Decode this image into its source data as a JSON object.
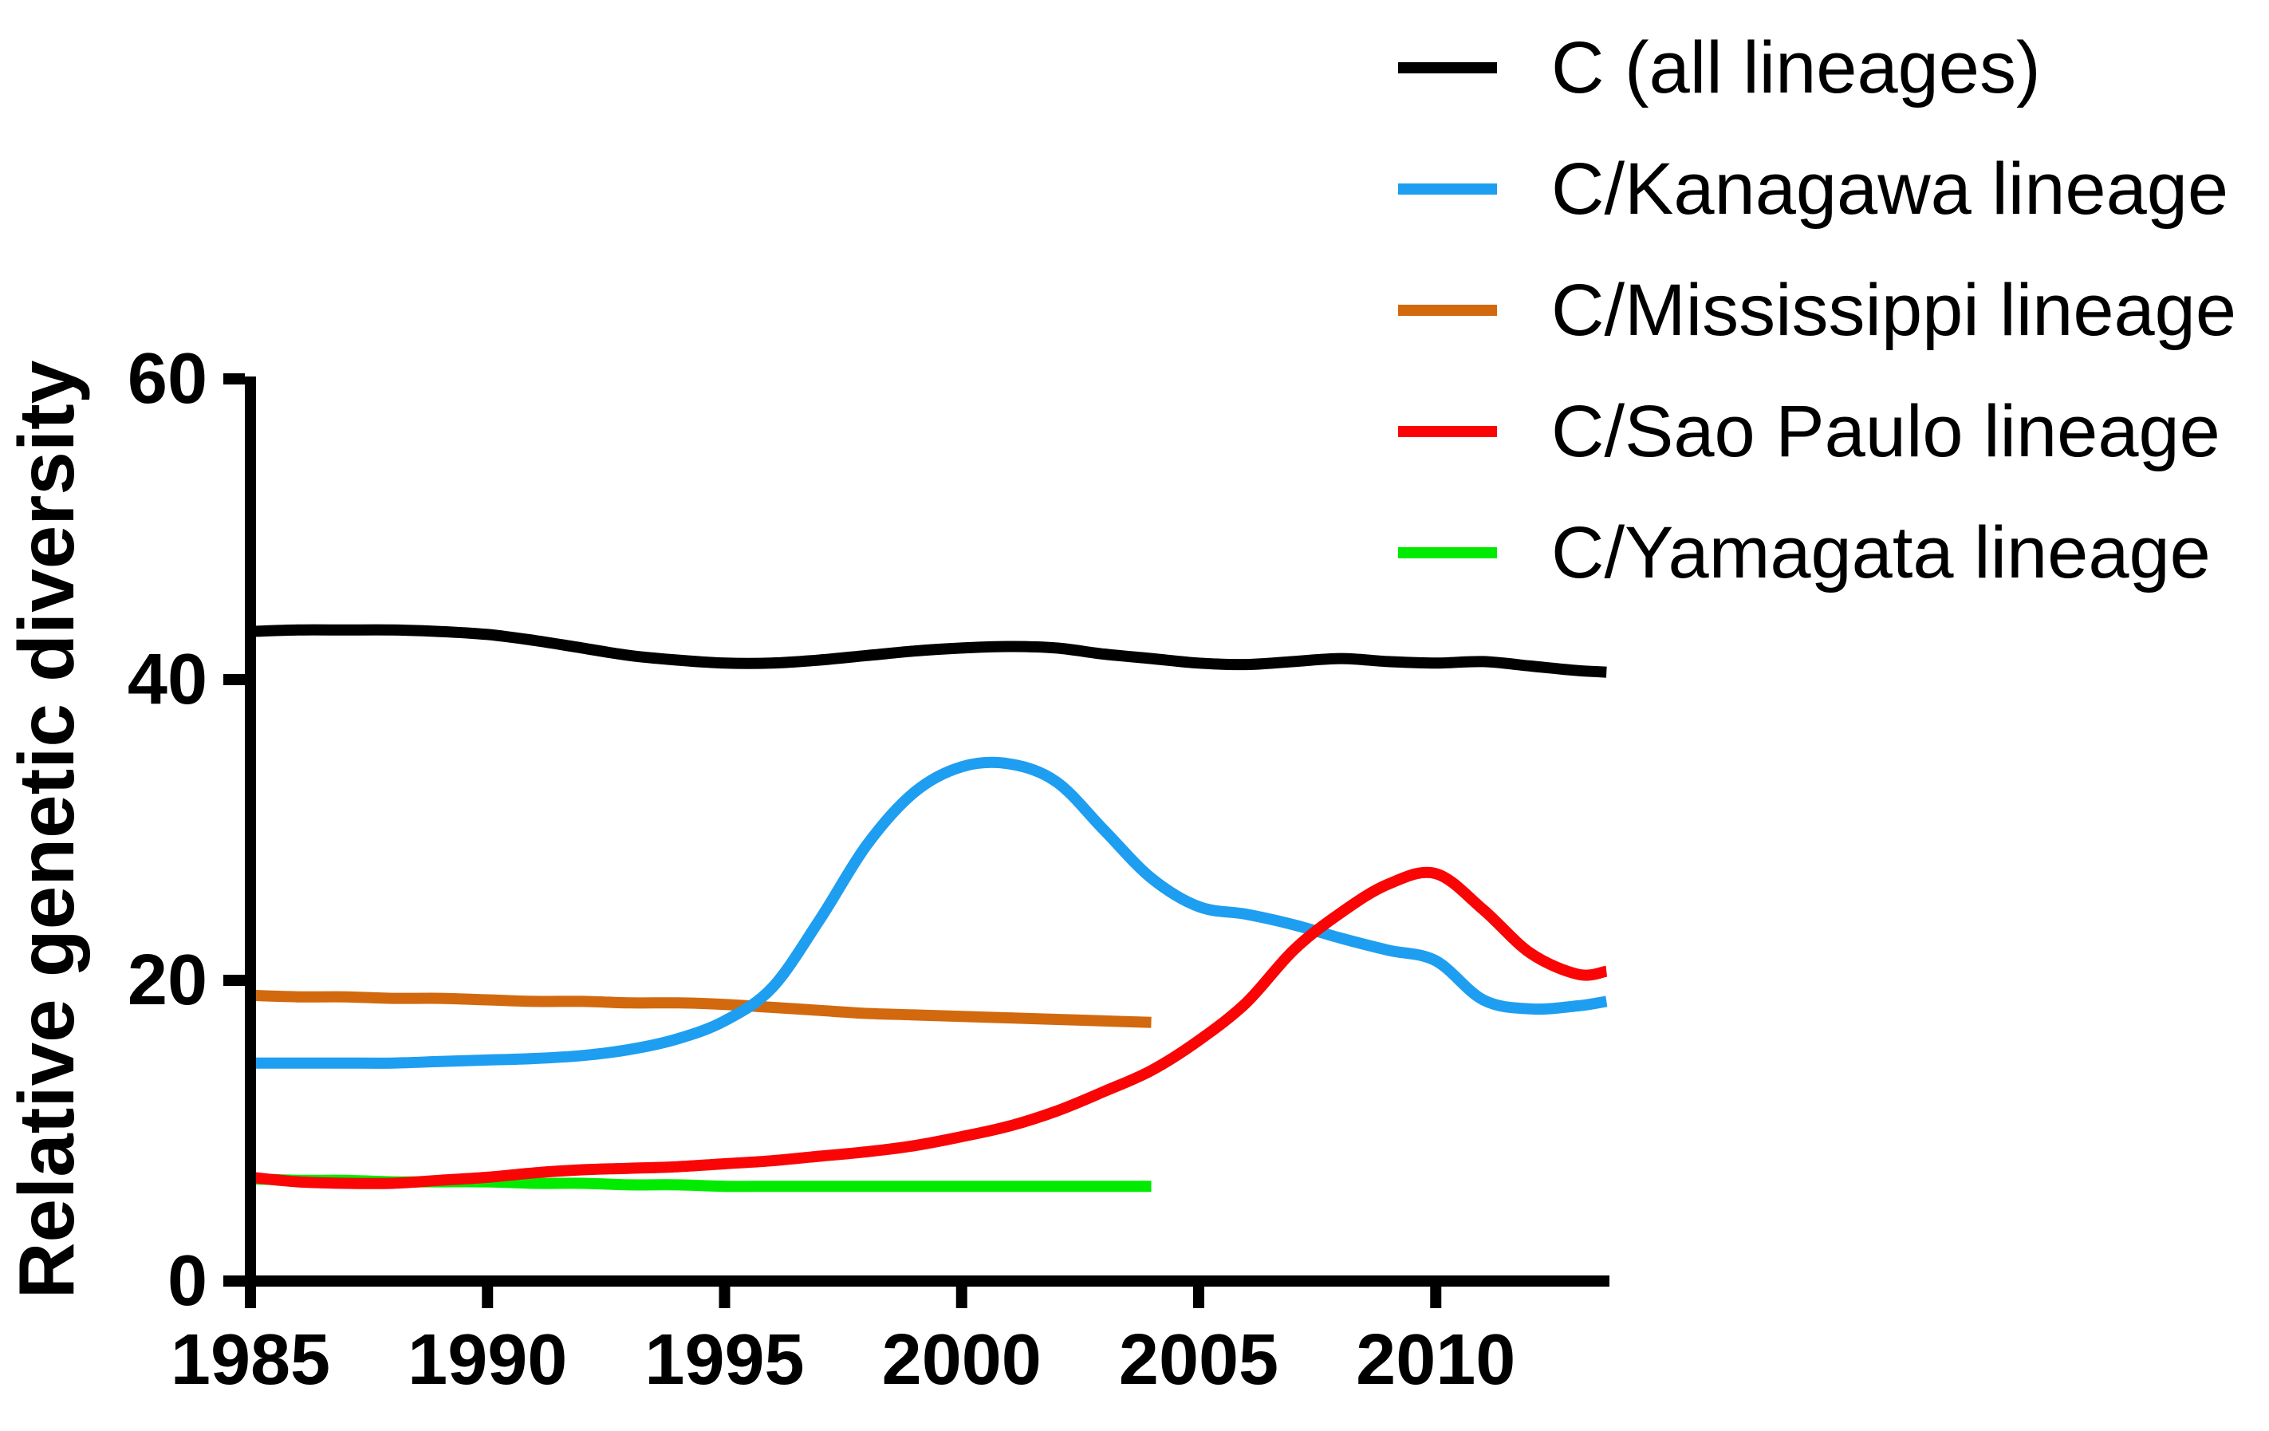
{
  "figure": {
    "background": "#ffffff",
    "axis_color": "#000000"
  },
  "chart_data": {
    "type": "line",
    "title": "",
    "xlabel": "",
    "ylabel": "Relative genetic diversity",
    "xlim": [
      1985,
      2013.95
    ],
    "ylim": [
      0,
      60
    ],
    "xticks": [
      1985,
      1990,
      1995,
      2000,
      2005,
      2010
    ],
    "yticks": [
      0,
      20,
      40,
      60
    ],
    "grid": false,
    "legend_position": "top-right",
    "series": [
      {
        "name": "C (all lineages)",
        "color": "#000000",
        "z": 3,
        "x": [
          1985,
          1986,
          1987,
          1988,
          1989,
          1990,
          1991,
          1992,
          1993,
          1994,
          1995,
          1996,
          1997,
          1998,
          1999,
          2000,
          2001,
          2002,
          2003,
          2004,
          2005,
          2006,
          2007,
          2008,
          2009,
          2010,
          2011,
          2012,
          2013,
          2013.6
        ],
        "values": [
          43.2,
          43.3,
          43.3,
          43.3,
          43.2,
          43.0,
          42.6,
          42.1,
          41.6,
          41.3,
          41.1,
          41.1,
          41.3,
          41.6,
          41.9,
          42.1,
          42.2,
          42.1,
          41.7,
          41.4,
          41.1,
          41.0,
          41.2,
          41.4,
          41.2,
          41.1,
          41.2,
          40.9,
          40.6,
          40.5
        ]
      },
      {
        "name": "C/Kanagawa lineage",
        "color": "#1E9EF0",
        "z": 4,
        "x": [
          1985,
          1986,
          1987,
          1988,
          1989,
          1990,
          1991,
          1992,
          1993,
          1994,
          1995,
          1996,
          1997,
          1998,
          1999,
          2000,
          2001,
          2002,
          2003,
          2004,
          2005,
          2006,
          2007,
          2008,
          2009,
          2010,
          2011,
          2012,
          2013,
          2013.6
        ],
        "values": [
          14.5,
          14.5,
          14.5,
          14.5,
          14.6,
          14.7,
          14.8,
          15.0,
          15.4,
          16.1,
          17.3,
          19.5,
          24.0,
          29.0,
          32.5,
          34.2,
          34.4,
          33.2,
          30.0,
          26.8,
          24.9,
          24.4,
          23.7,
          22.8,
          22.0,
          21.3,
          18.7,
          18.1,
          18.3,
          18.6
        ]
      },
      {
        "name": "C/Mississippi lineage",
        "color": "#D2690E",
        "z": 2,
        "x": [
          1985,
          1986,
          1987,
          1988,
          1989,
          1990,
          1991,
          1992,
          1993,
          1994,
          1995,
          1996,
          1997,
          1998,
          1999,
          2000,
          2001,
          2002,
          2003,
          2004
        ],
        "values": [
          19.0,
          18.9,
          18.9,
          18.8,
          18.8,
          18.7,
          18.6,
          18.6,
          18.5,
          18.5,
          18.4,
          18.2,
          18.0,
          17.8,
          17.7,
          17.6,
          17.5,
          17.4,
          17.3,
          17.2
        ]
      },
      {
        "name": "C/Sao Paulo lineage",
        "color": "#FA0505",
        "z": 5,
        "x": [
          1985,
          1986,
          1987,
          1988,
          1989,
          1990,
          1991,
          1992,
          1993,
          1994,
          1995,
          1996,
          1997,
          1998,
          1999,
          2000,
          2001,
          2002,
          2003,
          2004,
          2005,
          2006,
          2007,
          2008,
          2009,
          2010,
          2011,
          2012,
          2013,
          2013.6
        ],
        "values": [
          6.9,
          6.6,
          6.5,
          6.5,
          6.7,
          6.9,
          7.2,
          7.4,
          7.5,
          7.6,
          7.8,
          8.0,
          8.3,
          8.6,
          9.0,
          9.6,
          10.3,
          11.3,
          12.6,
          14.0,
          16.0,
          18.5,
          22.0,
          24.5,
          26.4,
          27.1,
          24.7,
          21.8,
          20.4,
          20.6
        ]
      },
      {
        "name": "C/Yamagata lineage",
        "color": "#00EB00",
        "z": 1,
        "x": [
          1985,
          1986,
          1987,
          1988,
          1989,
          1990,
          1991,
          1992,
          1993,
          1994,
          1995,
          1996,
          1997,
          1998,
          1999,
          2000,
          2001,
          2002,
          2003,
          2004
        ],
        "values": [
          6.8,
          6.7,
          6.7,
          6.6,
          6.6,
          6.6,
          6.5,
          6.5,
          6.4,
          6.4,
          6.3,
          6.3,
          6.3,
          6.3,
          6.3,
          6.3,
          6.3,
          6.3,
          6.3,
          6.3
        ]
      }
    ]
  }
}
